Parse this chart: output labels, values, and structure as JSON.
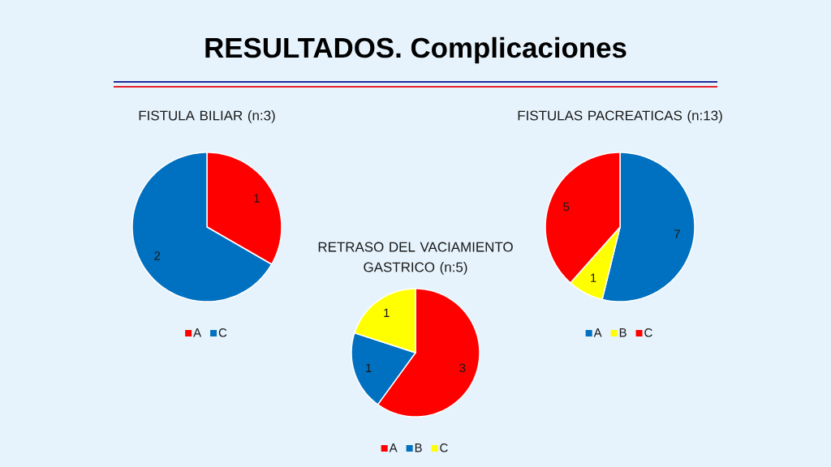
{
  "chart_data": [
    {
      "type": "other",
      "title": "RESULTADOS. Complicaciones"
    },
    {
      "type": "pie",
      "title": "FISTULA BILIAR (n:3)",
      "categories": [
        "A",
        "C"
      ],
      "values": [
        1,
        2
      ],
      "colors": [
        "#ff0000",
        "#0070c0"
      ],
      "data_labels": true,
      "legend": "bottom"
    },
    {
      "type": "pie",
      "title": "FISTULAS PACREATICAS (n:13)",
      "categories": [
        "A",
        "B",
        "C"
      ],
      "values": [
        7,
        1,
        5
      ],
      "colors": [
        "#0070c0",
        "#ffff00",
        "#ff0000"
      ],
      "data_labels": true,
      "legend": "bottom"
    },
    {
      "type": "pie",
      "title": "RETRASO DEL VACIAMIENTO GASTRICO (n:5)",
      "categories": [
        "A",
        "B",
        "C"
      ],
      "values": [
        3,
        1,
        1
      ],
      "colors": [
        "#ff0000",
        "#0070c0",
        "#ffff00"
      ],
      "data_labels": true,
      "legend": "bottom"
    }
  ]
}
